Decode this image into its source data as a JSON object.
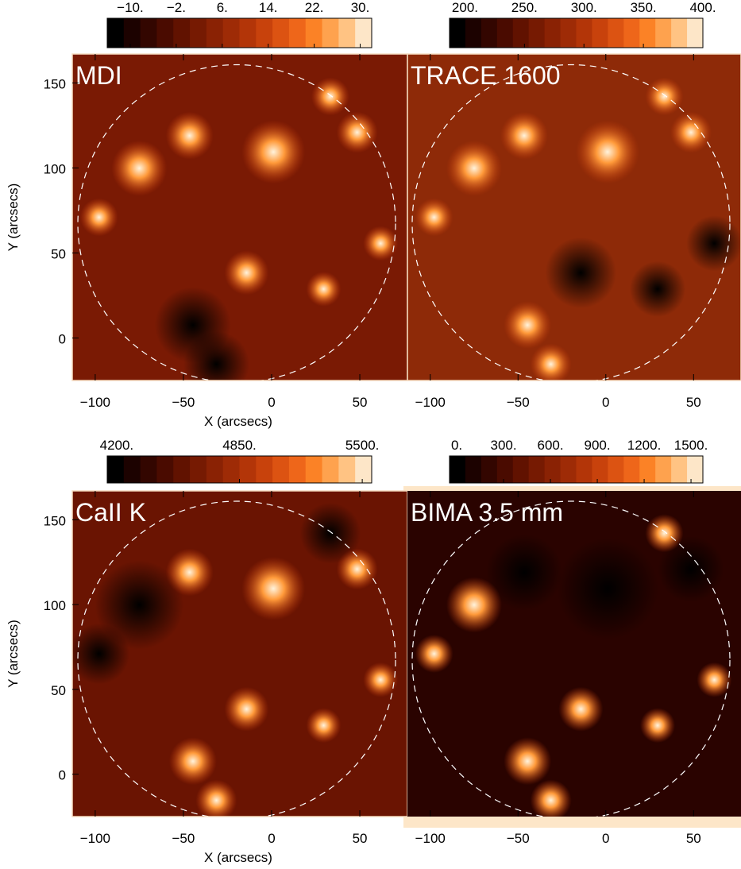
{
  "chart_data": [
    {
      "type": "heatmap",
      "title": "MDI",
      "colorbar_ticks": [
        {
          "value": -10,
          "label": "−10."
        },
        {
          "value": -2,
          "label": "−2."
        },
        {
          "value": 6,
          "label": "6."
        },
        {
          "value": 14,
          "label": "14."
        },
        {
          "value": 22,
          "label": "22."
        },
        {
          "value": 30,
          "label": "30."
        }
      ],
      "clim": [
        -14,
        32
      ],
      "xlim": [
        -113,
        77
      ],
      "ylim": [
        -25,
        167
      ],
      "xticks": [
        {
          "value": -100,
          "label": "−100"
        },
        {
          "value": -50,
          "label": "−50"
        },
        0,
        50
      ],
      "yticks": [
        0,
        50,
        100,
        150
      ],
      "xlabel": "X (arcsecs)",
      "ylabel": "Y (arcsecs)"
    },
    {
      "type": "heatmap",
      "title": "TRACE 1600",
      "colorbar_ticks": [
        {
          "value": 200,
          "label": "200."
        },
        {
          "value": 250,
          "label": "250."
        },
        {
          "value": 300,
          "label": "300."
        },
        {
          "value": 350,
          "label": "350."
        },
        {
          "value": 400,
          "label": "400."
        }
      ],
      "clim": [
        187,
        400
      ],
      "xlim": [
        -113,
        77
      ],
      "ylim": [
        -25,
        167
      ],
      "xticks": [
        {
          "value": -100,
          "label": "−100"
        },
        {
          "value": -50,
          "label": "−50"
        },
        0,
        50
      ]
    },
    {
      "type": "heatmap",
      "title": "CaII K",
      "colorbar_ticks": [
        {
          "value": 4200,
          "label": "4200."
        },
        {
          "value": 4850,
          "label": "4850."
        },
        {
          "value": 5500,
          "label": "5500."
        }
      ],
      "clim": [
        4150,
        5550
      ],
      "xlim": [
        -113,
        77
      ],
      "ylim": [
        -25,
        167
      ],
      "xticks": [
        {
          "value": -100,
          "label": "−100"
        },
        {
          "value": -50,
          "label": "−50"
        },
        0,
        50
      ],
      "yticks": [
        0,
        50,
        100,
        150
      ],
      "xlabel": "X (arcsecs)",
      "ylabel": "Y (arcsecs)"
    },
    {
      "type": "heatmap",
      "title": "BIMA 3.5 mm",
      "colorbar_ticks": [
        {
          "value": 0,
          "label": "0."
        },
        {
          "value": 300,
          "label": "300."
        },
        {
          "value": 600,
          "label": "600."
        },
        {
          "value": 900,
          "label": "900."
        },
        {
          "value": 1200,
          "label": "1200."
        },
        {
          "value": 1500,
          "label": "1500."
        }
      ],
      "clim": [
        -46,
        1576
      ],
      "xlim": [
        -113,
        77
      ],
      "ylim": [
        -25,
        167
      ],
      "xticks": [
        {
          "value": -100,
          "label": "−100"
        },
        {
          "value": -50,
          "label": "−50"
        },
        0,
        50
      ]
    }
  ]
}
